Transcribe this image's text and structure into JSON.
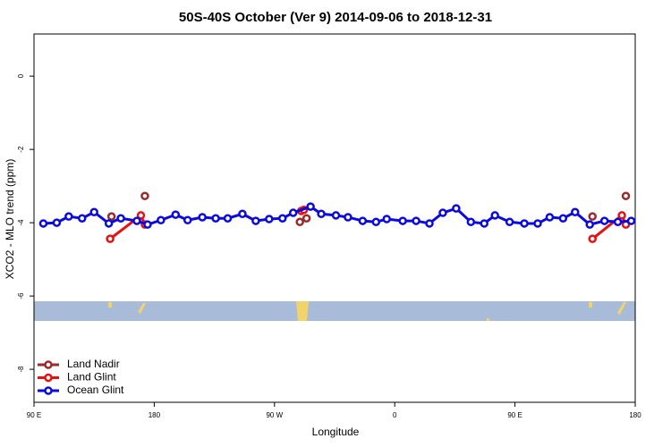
{
  "chart_data": {
    "type": "line",
    "title": "50S-40S October (Ver 9)   2014-09-06 to 2018-12-31",
    "x_label": "Longitude",
    "y_label": "XCO2 - MLO trend (ppm)",
    "xlim": [
      90,
      540
    ],
    "ylim": [
      -8.9,
      1.15
    ],
    "xticks": [
      {
        "value": 90,
        "label": "90 E"
      },
      180,
      {
        "value": 270,
        "label": "90 W"
      },
      {
        "value": 360,
        "label": "0"
      },
      {
        "value": 450,
        "label": "90 E"
      },
      {
        "value": 540,
        "label": "180"
      }
    ],
    "yticks": [
      0,
      -2,
      -4,
      -6,
      -8
    ],
    "legend": "bottom-left",
    "series": [
      {
        "name": "Land Nadir",
        "color": "#9b2a2a",
        "lines": false,
        "x": [
          148,
          173,
          289,
          294,
          508,
          533
        ],
        "values": [
          -3.83,
          -3.27,
          -3.98,
          -3.88,
          -3.83,
          -3.27
        ]
      },
      {
        "name": "Land Glint",
        "color": "#e81010",
        "lines": true,
        "x": [
          147,
          170,
          173,
          290,
          292,
          508,
          530,
          533
        ],
        "values": [
          -4.44,
          -3.8,
          -4.05,
          -3.68,
          -3.65,
          -4.44,
          -3.8,
          -4.05
        ]
      },
      {
        "name": "Ocean Glint",
        "color": "#0a0ae0",
        "lines": true,
        "x": [
          97,
          107,
          116,
          126,
          135,
          146,
          155,
          167,
          175,
          185,
          196,
          205,
          216,
          226,
          235,
          246,
          256,
          266,
          276,
          284,
          297,
          305,
          316,
          325,
          336,
          346,
          354,
          366,
          376,
          386,
          396,
          406,
          417,
          427,
          435,
          446,
          457,
          467,
          476,
          486,
          495,
          506,
          517,
          527,
          537
        ],
        "values": [
          -4.02,
          -4.0,
          -3.83,
          -3.88,
          -3.71,
          -4.02,
          -3.88,
          -3.95,
          -4.05,
          -3.93,
          -3.78,
          -3.93,
          -3.85,
          -3.88,
          -3.88,
          -3.76,
          -3.95,
          -3.9,
          -3.88,
          -3.73,
          -3.56,
          -3.76,
          -3.8,
          -3.85,
          -3.95,
          -3.98,
          -3.9,
          -3.95,
          -3.95,
          -4.02,
          -3.73,
          -3.61,
          -3.98,
          -4.02,
          -3.8,
          -3.98,
          -4.02,
          -4.02,
          -3.85,
          -3.88,
          -3.71,
          -4.05,
          -3.95,
          -3.98,
          -3.95
        ]
      }
    ]
  }
}
